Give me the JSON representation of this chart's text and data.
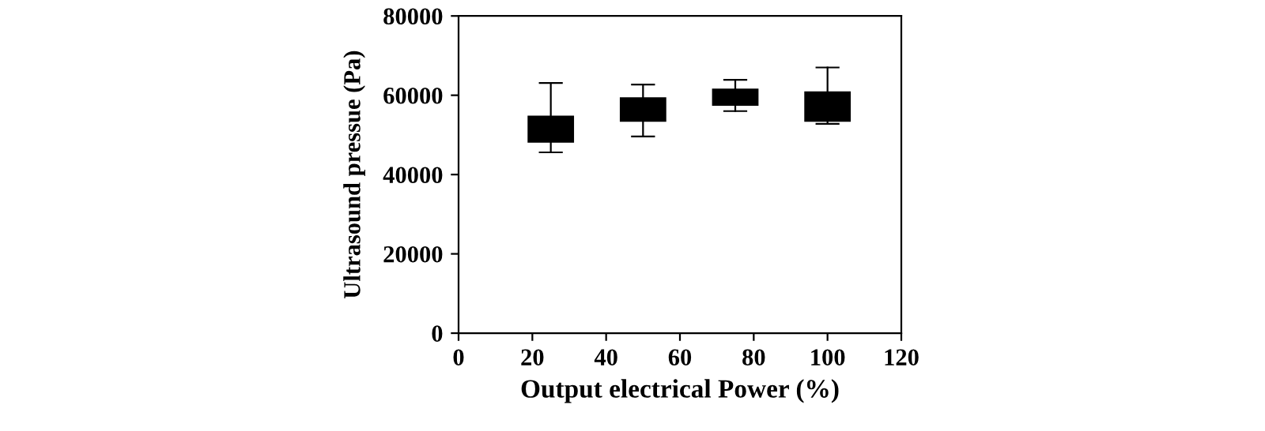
{
  "chart_data": {
    "type": "box",
    "xlabel": "Output electrical Power (%)",
    "ylabel": "Ultrasound pressue (Pa)",
    "x": [
      25,
      50,
      75,
      100
    ],
    "boxes": [
      {
        "low": 45600,
        "q1": 48300,
        "median": 51500,
        "q3": 54600,
        "high": 63100
      },
      {
        "low": 49600,
        "q1": 53600,
        "median": 56400,
        "q3": 59200,
        "high": 62700
      },
      {
        "low": 56000,
        "q1": 57600,
        "median": 59500,
        "q3": 61400,
        "high": 63900
      },
      {
        "low": 52800,
        "q1": 53600,
        "median": 57200,
        "q3": 60700,
        "high": 67000
      }
    ],
    "color": "#000000",
    "xlim": [
      0,
      120
    ],
    "xticks": [
      0,
      20,
      40,
      60,
      80,
      100,
      120
    ],
    "ylim": [
      0,
      80000
    ],
    "yticks": [
      0,
      20000,
      40000,
      60000,
      80000
    ],
    "grid": false
  }
}
